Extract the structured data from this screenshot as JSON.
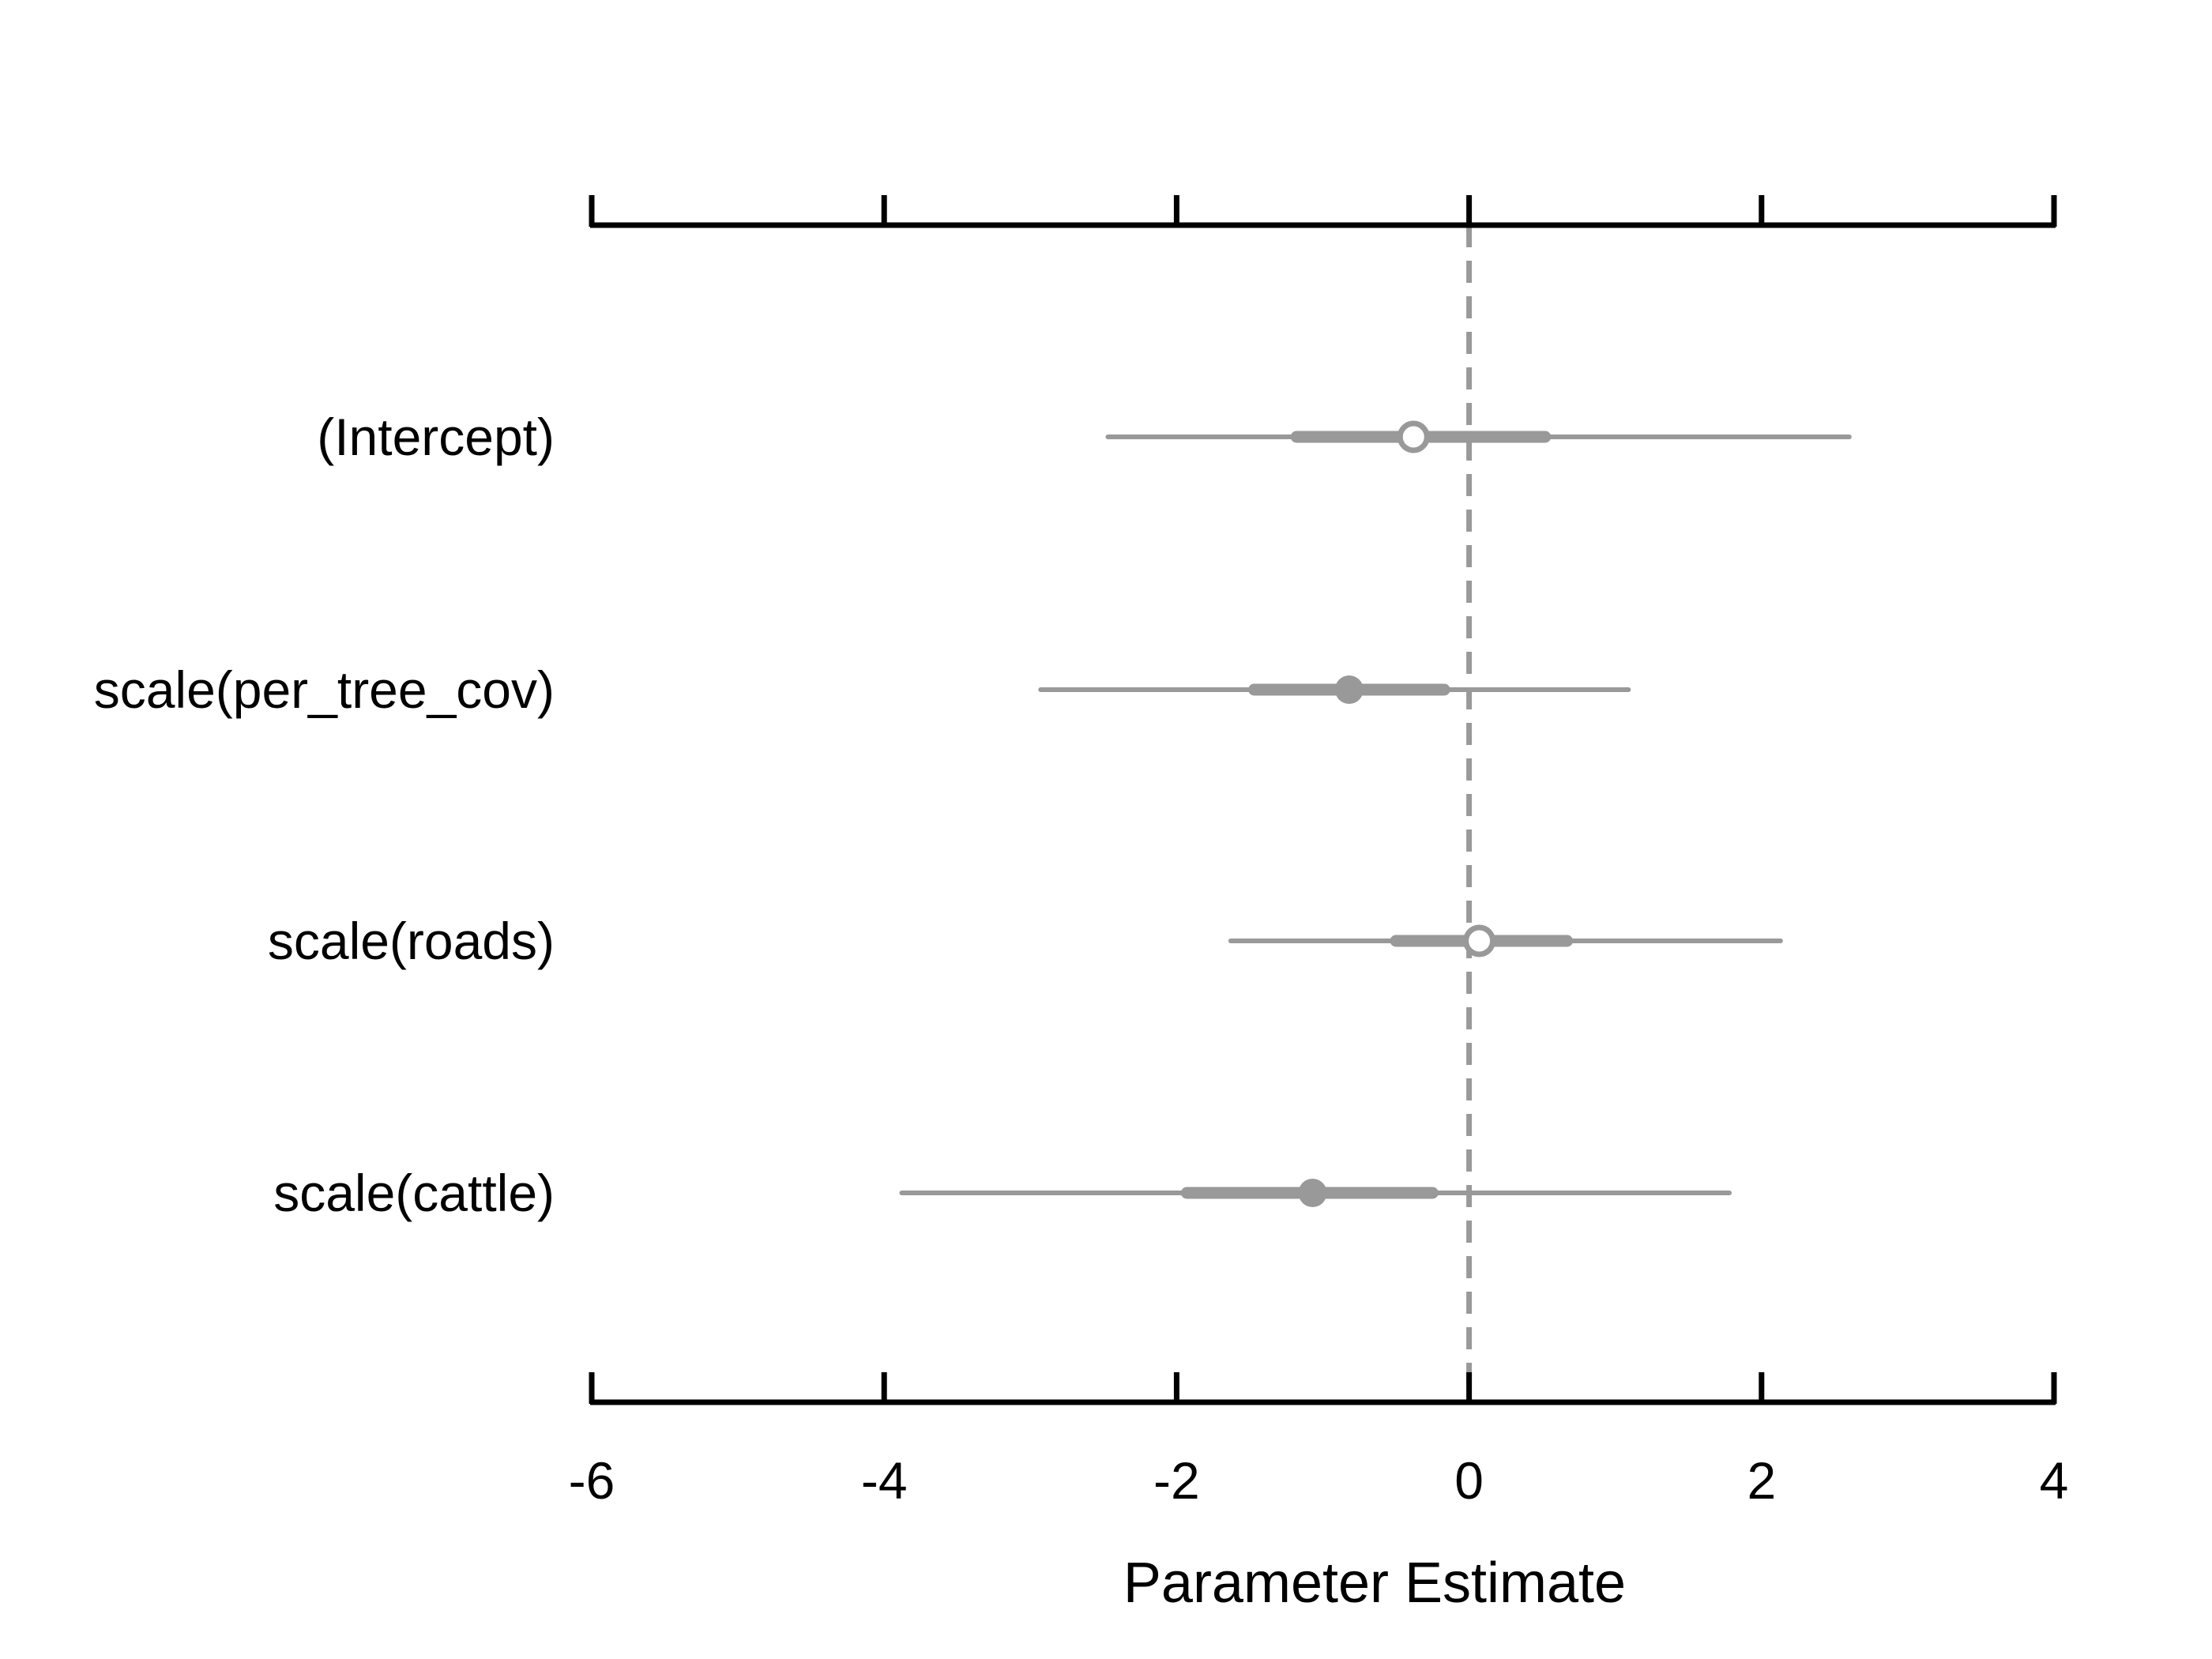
{
  "chart_data": {
    "type": "scatter",
    "subtype": "coefficient-interval-plot",
    "title": "",
    "xlabel": "Parameter Estimate",
    "ylabel": "",
    "xlim": [
      -6,
      4
    ],
    "xticks": [
      -6,
      -4,
      -2,
      0,
      2,
      4
    ],
    "reference_line": 0,
    "grid": false,
    "legend": "none",
    "colors": {
      "interval": "#999999",
      "axis": "#000000",
      "reference": "#999999",
      "open_fill": "#ffffff"
    },
    "parameters": [
      {
        "name": "(Intercept)",
        "estimate": -0.38,
        "inner": [
          -1.18,
          0.52
        ],
        "outer": [
          -2.47,
          2.6
        ],
        "marker": "open"
      },
      {
        "name": "scale(per_tree_cov)",
        "estimate": -0.82,
        "inner": [
          -1.47,
          -0.17
        ],
        "outer": [
          -2.93,
          1.09
        ],
        "marker": "filled"
      },
      {
        "name": "scale(roads)",
        "estimate": 0.07,
        "inner": [
          -0.5,
          0.67
        ],
        "outer": [
          -1.63,
          2.13
        ],
        "marker": "open"
      },
      {
        "name": "scale(cattle)",
        "estimate": -1.07,
        "inner": [
          -1.93,
          -0.25
        ],
        "outer": [
          -3.88,
          1.78
        ],
        "marker": "filled"
      }
    ]
  }
}
